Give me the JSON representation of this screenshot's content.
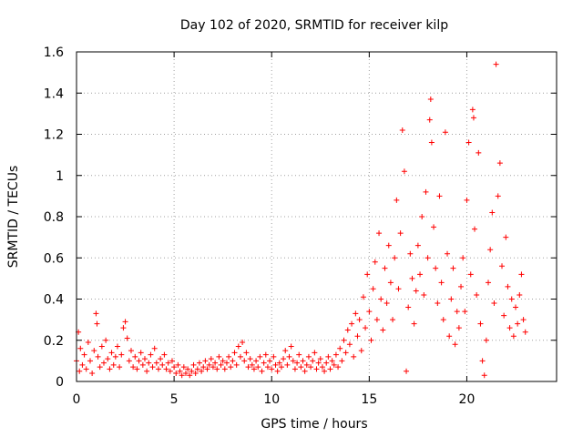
{
  "chart_data": {
    "type": "scatter",
    "title": "Day 102 of 2020, SRMTID for receiver kilp",
    "xlabel": "GPS time / hours",
    "ylabel": "SRMTID / TECUs",
    "xlim": [
      0,
      24.6
    ],
    "ylim": [
      0,
      1.6
    ],
    "xticks": [
      0,
      5,
      10,
      15,
      20
    ],
    "xtick_labels": [
      "0",
      "5",
      "10",
      "15",
      "20"
    ],
    "yticks": [
      0,
      0.2,
      0.4,
      0.6,
      0.8,
      1.0,
      1.2,
      1.4,
      1.6
    ],
    "ytick_labels": [
      "0",
      "0.2",
      "0.4",
      "0.6",
      "0.8",
      "1",
      "1.2",
      "1.4",
      "1.6"
    ],
    "grid": true,
    "marker": "+",
    "color": "#ff0000",
    "series": [
      {
        "name": "SRMTID",
        "points": [
          [
            0.0,
            0.1
          ],
          [
            0.1,
            0.24
          ],
          [
            0.15,
            0.05
          ],
          [
            0.2,
            0.16
          ],
          [
            0.3,
            0.08
          ],
          [
            0.4,
            0.13
          ],
          [
            0.5,
            0.06
          ],
          [
            0.6,
            0.19
          ],
          [
            0.7,
            0.1
          ],
          [
            0.8,
            0.04
          ],
          [
            0.9,
            0.15
          ],
          [
            1.0,
            0.33
          ],
          [
            1.05,
            0.28
          ],
          [
            1.1,
            0.12
          ],
          [
            1.2,
            0.07
          ],
          [
            1.3,
            0.17
          ],
          [
            1.4,
            0.09
          ],
          [
            1.5,
            0.2
          ],
          [
            1.6,
            0.11
          ],
          [
            1.7,
            0.06
          ],
          [
            1.8,
            0.14
          ],
          [
            1.9,
            0.08
          ],
          [
            2.0,
            0.12
          ],
          [
            2.1,
            0.17
          ],
          [
            2.2,
            0.07
          ],
          [
            2.3,
            0.13
          ],
          [
            2.4,
            0.26
          ],
          [
            2.5,
            0.29
          ],
          [
            2.6,
            0.21
          ],
          [
            2.7,
            0.1
          ],
          [
            2.8,
            0.15
          ],
          [
            2.9,
            0.07
          ],
          [
            3.0,
            0.12
          ],
          [
            3.1,
            0.06
          ],
          [
            3.2,
            0.1
          ],
          [
            3.3,
            0.14
          ],
          [
            3.4,
            0.08
          ],
          [
            3.5,
            0.11
          ],
          [
            3.6,
            0.05
          ],
          [
            3.7,
            0.09
          ],
          [
            3.8,
            0.13
          ],
          [
            3.9,
            0.07
          ],
          [
            4.0,
            0.16
          ],
          [
            4.1,
            0.09
          ],
          [
            4.2,
            0.06
          ],
          [
            4.3,
            0.11
          ],
          [
            4.4,
            0.08
          ],
          [
            4.5,
            0.13
          ],
          [
            4.6,
            0.06
          ],
          [
            4.7,
            0.09
          ],
          [
            4.8,
            0.05
          ],
          [
            4.9,
            0.1
          ],
          [
            5.0,
            0.07
          ],
          [
            5.1,
            0.04
          ],
          [
            5.2,
            0.08
          ],
          [
            5.3,
            0.05
          ],
          [
            5.4,
            0.03
          ],
          [
            5.5,
            0.07
          ],
          [
            5.6,
            0.04
          ],
          [
            5.7,
            0.06
          ],
          [
            5.8,
            0.03
          ],
          [
            5.9,
            0.05
          ],
          [
            6.0,
            0.08
          ],
          [
            6.1,
            0.04
          ],
          [
            6.2,
            0.06
          ],
          [
            6.3,
            0.09
          ],
          [
            6.4,
            0.05
          ],
          [
            6.5,
            0.07
          ],
          [
            6.6,
            0.1
          ],
          [
            6.7,
            0.06
          ],
          [
            6.8,
            0.08
          ],
          [
            6.9,
            0.11
          ],
          [
            7.0,
            0.07
          ],
          [
            7.1,
            0.09
          ],
          [
            7.2,
            0.06
          ],
          [
            7.3,
            0.12
          ],
          [
            7.4,
            0.08
          ],
          [
            7.5,
            0.1
          ],
          [
            7.6,
            0.06
          ],
          [
            7.7,
            0.09
          ],
          [
            7.8,
            0.12
          ],
          [
            7.9,
            0.07
          ],
          [
            8.0,
            0.1
          ],
          [
            8.1,
            0.14
          ],
          [
            8.2,
            0.08
          ],
          [
            8.3,
            0.17
          ],
          [
            8.4,
            0.12
          ],
          [
            8.5,
            0.19
          ],
          [
            8.6,
            0.1
          ],
          [
            8.7,
            0.14
          ],
          [
            8.8,
            0.07
          ],
          [
            8.9,
            0.11
          ],
          [
            9.0,
            0.08
          ],
          [
            9.1,
            0.06
          ],
          [
            9.2,
            0.1
          ],
          [
            9.3,
            0.07
          ],
          [
            9.4,
            0.12
          ],
          [
            9.5,
            0.05
          ],
          [
            9.6,
            0.09
          ],
          [
            9.7,
            0.13
          ],
          [
            9.8,
            0.07
          ],
          [
            9.9,
            0.1
          ],
          [
            10.0,
            0.06
          ],
          [
            10.1,
            0.12
          ],
          [
            10.2,
            0.08
          ],
          [
            10.3,
            0.05
          ],
          [
            10.4,
            0.09
          ],
          [
            10.5,
            0.07
          ],
          [
            10.6,
            0.11
          ],
          [
            10.7,
            0.15
          ],
          [
            10.8,
            0.08
          ],
          [
            10.9,
            0.12
          ],
          [
            11.0,
            0.17
          ],
          [
            11.1,
            0.1
          ],
          [
            11.2,
            0.06
          ],
          [
            11.3,
            0.09
          ],
          [
            11.4,
            0.13
          ],
          [
            11.5,
            0.07
          ],
          [
            11.6,
            0.1
          ],
          [
            11.7,
            0.05
          ],
          [
            11.8,
            0.08
          ],
          [
            11.9,
            0.12
          ],
          [
            12.0,
            0.07
          ],
          [
            12.1,
            0.1
          ],
          [
            12.2,
            0.14
          ],
          [
            12.3,
            0.06
          ],
          [
            12.4,
            0.09
          ],
          [
            12.5,
            0.11
          ],
          [
            12.6,
            0.07
          ],
          [
            12.7,
            0.05
          ],
          [
            12.8,
            0.09
          ],
          [
            12.9,
            0.12
          ],
          [
            13.0,
            0.06
          ],
          [
            13.1,
            0.1
          ],
          [
            13.2,
            0.08
          ],
          [
            13.3,
            0.13
          ],
          [
            13.4,
            0.07
          ],
          [
            13.5,
            0.16
          ],
          [
            13.6,
            0.1
          ],
          [
            13.7,
            0.2
          ],
          [
            13.8,
            0.14
          ],
          [
            13.9,
            0.25
          ],
          [
            14.0,
            0.18
          ],
          [
            14.1,
            0.28
          ],
          [
            14.2,
            0.12
          ],
          [
            14.3,
            0.33
          ],
          [
            14.4,
            0.22
          ],
          [
            14.5,
            0.3
          ],
          [
            14.6,
            0.15
          ],
          [
            14.7,
            0.41
          ],
          [
            14.8,
            0.26
          ],
          [
            14.9,
            0.52
          ],
          [
            15.0,
            0.34
          ],
          [
            15.1,
            0.2
          ],
          [
            15.2,
            0.45
          ],
          [
            15.3,
            0.58
          ],
          [
            15.4,
            0.3
          ],
          [
            15.5,
            0.72
          ],
          [
            15.6,
            0.4
          ],
          [
            15.7,
            0.25
          ],
          [
            15.8,
            0.55
          ],
          [
            15.9,
            0.38
          ],
          [
            16.0,
            0.66
          ],
          [
            16.1,
            0.48
          ],
          [
            16.2,
            0.3
          ],
          [
            16.3,
            0.6
          ],
          [
            16.4,
            0.88
          ],
          [
            16.5,
            0.45
          ],
          [
            16.6,
            0.72
          ],
          [
            16.7,
            1.22
          ],
          [
            16.8,
            1.02
          ],
          [
            16.9,
            0.05
          ],
          [
            17.0,
            0.36
          ],
          [
            17.1,
            0.62
          ],
          [
            17.2,
            0.5
          ],
          [
            17.3,
            0.28
          ],
          [
            17.4,
            0.44
          ],
          [
            17.5,
            0.66
          ],
          [
            17.6,
            0.52
          ],
          [
            17.7,
            0.8
          ],
          [
            17.8,
            0.42
          ],
          [
            17.9,
            0.92
          ],
          [
            18.0,
            0.6
          ],
          [
            18.1,
            1.27
          ],
          [
            18.15,
            1.37
          ],
          [
            18.2,
            1.16
          ],
          [
            18.3,
            0.75
          ],
          [
            18.4,
            0.55
          ],
          [
            18.5,
            0.38
          ],
          [
            18.6,
            0.9
          ],
          [
            18.7,
            0.48
          ],
          [
            18.8,
            0.3
          ],
          [
            18.9,
            1.21
          ],
          [
            19.0,
            0.62
          ],
          [
            19.1,
            0.22
          ],
          [
            19.2,
            0.4
          ],
          [
            19.3,
            0.55
          ],
          [
            19.4,
            0.18
          ],
          [
            19.5,
            0.34
          ],
          [
            19.6,
            0.26
          ],
          [
            19.7,
            0.46
          ],
          [
            19.8,
            0.6
          ],
          [
            19.9,
            0.34
          ],
          [
            20.0,
            0.88
          ],
          [
            20.1,
            1.16
          ],
          [
            20.2,
            0.52
          ],
          [
            20.3,
            1.32
          ],
          [
            20.35,
            1.28
          ],
          [
            20.4,
            0.74
          ],
          [
            20.5,
            0.42
          ],
          [
            20.6,
            1.11
          ],
          [
            20.7,
            0.28
          ],
          [
            20.8,
            0.1
          ],
          [
            20.9,
            0.03
          ],
          [
            21.0,
            0.2
          ],
          [
            21.1,
            0.48
          ],
          [
            21.2,
            0.64
          ],
          [
            21.3,
            0.82
          ],
          [
            21.4,
            0.38
          ],
          [
            21.5,
            1.54
          ],
          [
            21.6,
            0.9
          ],
          [
            21.7,
            1.06
          ],
          [
            21.8,
            0.56
          ],
          [
            21.9,
            0.32
          ],
          [
            22.0,
            0.7
          ],
          [
            22.1,
            0.46
          ],
          [
            22.2,
            0.26
          ],
          [
            22.3,
            0.4
          ],
          [
            22.4,
            0.22
          ],
          [
            22.5,
            0.36
          ],
          [
            22.6,
            0.28
          ],
          [
            22.7,
            0.42
          ],
          [
            22.8,
            0.52
          ],
          [
            22.9,
            0.3
          ],
          [
            23.0,
            0.24
          ]
        ]
      }
    ]
  }
}
